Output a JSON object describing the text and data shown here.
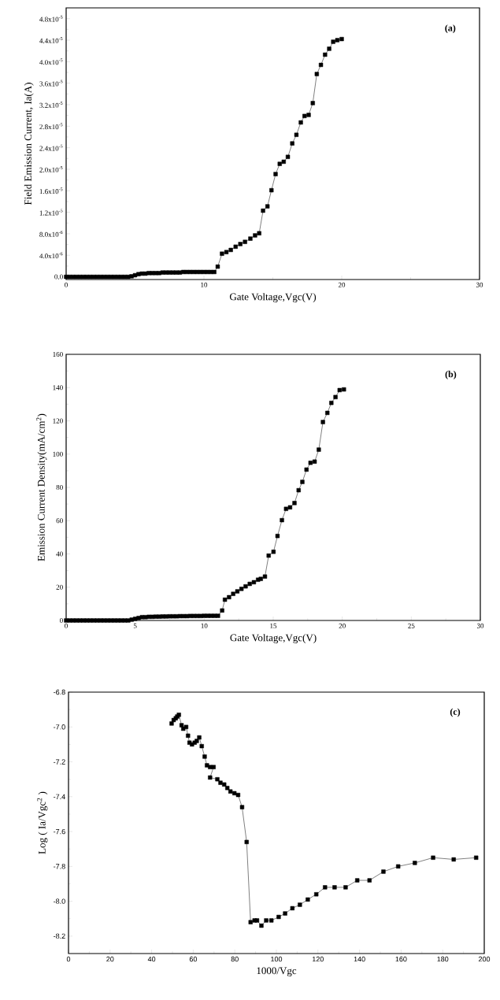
{
  "chart_data": [
    {
      "type": "line",
      "xlabel": "Gate Voltage,Vgc(V)",
      "ylabel": "Field Emission Current, Ia(A)",
      "annotations": [
        "(a)"
      ],
      "marker": "square",
      "line_style": "solid",
      "color": "#000000",
      "x": [
        0,
        0.25,
        0.5,
        0.75,
        1,
        1.25,
        1.5,
        1.75,
        2,
        2.25,
        2.5,
        2.75,
        3,
        3.25,
        3.5,
        3.75,
        4,
        4.25,
        4.5,
        4.75,
        5,
        5.25,
        5.5,
        5.75,
        6,
        6.25,
        6.5,
        6.75,
        7,
        7.25,
        7.5,
        7.75,
        8,
        8.25,
        8.5,
        8.75,
        9,
        9.25,
        9.5,
        9.75,
        10,
        10.25,
        10.5,
        10.75,
        11.0,
        11.31,
        11.63,
        11.95,
        12.3,
        12.64,
        12.98,
        13.37,
        13.71,
        14.01,
        14.29,
        14.61,
        14.9,
        15.2,
        15.5,
        15.79,
        16.09,
        16.41,
        16.71,
        17.03,
        17.3,
        17.6,
        17.9,
        18.19,
        18.49,
        18.79,
        19.09,
        19.38,
        19.68,
        20.0
      ],
      "values": [
        0,
        0,
        0,
        0,
        0,
        0,
        0,
        0,
        0,
        0,
        0,
        0,
        0,
        0,
        0,
        0,
        0,
        0,
        0,
        1e-07,
        3e-07,
        5e-07,
        6e-07,
        6e-07,
        7e-07,
        7e-07,
        7e-07,
        7e-07,
        8e-07,
        8e-07,
        8e-07,
        8e-07,
        8e-07,
        8e-07,
        9e-07,
        9e-07,
        9e-07,
        9e-07,
        9e-07,
        9e-07,
        9e-07,
        9e-07,
        9e-07,
        9e-07,
        1.9e-06,
        4.3e-06,
        4.6e-06,
        5e-06,
        5.6e-06,
        6.1e-06,
        6.5e-06,
        7.1e-06,
        7.7e-06,
        8.1e-06,
        1.23e-05,
        1.31e-05,
        1.61e-05,
        1.91e-05,
        2.1e-05,
        2.14e-05,
        2.23e-05,
        2.48e-05,
        2.64e-05,
        2.87e-05,
        2.99e-05,
        3.01e-05,
        3.23e-05,
        3.77e-05,
        3.94e-05,
        4.13e-05,
        4.24e-05,
        4.37e-05,
        4.4e-05,
        4.42e-05
      ],
      "xlim": [
        0,
        30
      ],
      "xticks": [
        0,
        10,
        20,
        30
      ],
      "ylim": [
        -5e-07,
        5e-05
      ],
      "yticks": [
        {
          "value": 0,
          "label": "0.0"
        },
        {
          "value": 4e-06,
          "label": "4.0x10$^{-6}$"
        },
        {
          "value": 8e-06,
          "label": "8.0x10$^{-6}$"
        },
        {
          "value": 1.2e-05,
          "label": "1.2x10$^{-5}$"
        },
        {
          "value": 1.6e-05,
          "label": "1.6x10$^{-5}$"
        },
        {
          "value": 2e-05,
          "label": "2.0x10$^{-5}$"
        },
        {
          "value": 2.4e-05,
          "label": "2.4x10$^{-5}$"
        },
        {
          "value": 2.8e-05,
          "label": "2.8x10$^{-5}$"
        },
        {
          "value": 3.2e-05,
          "label": "3.2x10$^{-5}$"
        },
        {
          "value": 3.6e-05,
          "label": "3.6x10$^{-5}$"
        },
        {
          "value": 4e-05,
          "label": "4.0x10$^{-5}$"
        },
        {
          "value": 4.4e-05,
          "label": "4.4x10$^{-5}$"
        },
        {
          "value": 4.8e-05,
          "label": "4.8x10$^{-5}$"
        }
      ]
    },
    {
      "type": "line",
      "xlabel": "Gate Voltage,Vgc(V)",
      "ylabel": "Emission Current Density(mA/cm$^{2}$)",
      "annotations": [
        "(b)"
      ],
      "marker": "square",
      "line_style": "solid",
      "color": "#000000",
      "x": [
        0,
        0.25,
        0.5,
        0.75,
        1,
        1.25,
        1.5,
        1.75,
        2,
        2.25,
        2.5,
        2.75,
        3,
        3.25,
        3.5,
        3.75,
        4,
        4.25,
        4.5,
        4.75,
        5,
        5.25,
        5.5,
        5.75,
        6,
        6.25,
        6.5,
        6.75,
        7,
        7.25,
        7.5,
        7.75,
        8,
        8.25,
        8.5,
        8.75,
        9,
        9.25,
        9.5,
        9.75,
        10,
        10.25,
        10.5,
        10.75,
        11.0,
        11.3,
        11.5,
        11.8,
        12.1,
        12.4,
        12.7,
        13.0,
        13.3,
        13.6,
        13.9,
        14.1,
        14.4,
        14.67,
        15.02,
        15.31,
        15.63,
        15.93,
        16.22,
        16.54,
        16.84,
        17.11,
        17.41,
        17.7,
        18.0,
        18.3,
        18.6,
        18.92,
        19.21,
        19.51,
        19.81,
        20.12
      ],
      "values": [
        0,
        0,
        0,
        0,
        0,
        0,
        0,
        0,
        0,
        0,
        0,
        0,
        0,
        0,
        0,
        0,
        0,
        0,
        0,
        0.5,
        1.0,
        1.5,
        2.0,
        2.0,
        2.2,
        2.2,
        2.3,
        2.3,
        2.4,
        2.4,
        2.5,
        2.5,
        2.5,
        2.6,
        2.6,
        2.6,
        2.7,
        2.7,
        2.7,
        2.7,
        2.8,
        2.8,
        2.8,
        2.8,
        2.8,
        6,
        12.5,
        14,
        16,
        17.5,
        19,
        20.5,
        22,
        23,
        24.5,
        25,
        26.4,
        39.0,
        41.3,
        50.8,
        60.3,
        67.1,
        68.0,
        70.6,
        78.3,
        83.3,
        90.7,
        94.8,
        95.5,
        102.7,
        119.3,
        124.8,
        130.8,
        134.3,
        138.5,
        138.9
      ],
      "xlim": [
        0,
        30
      ],
      "xticks": [
        0,
        5,
        10,
        15,
        20,
        25,
        30
      ],
      "ylim": [
        0,
        160
      ],
      "yticks": [
        0,
        20,
        40,
        60,
        80,
        100,
        120,
        140,
        160
      ]
    },
    {
      "type": "line",
      "xlabel": "1000/Vgc",
      "ylabel": "Log ( Ia/Vgc$^{2}$ )",
      "annotations": [
        "(c)"
      ],
      "marker": "square",
      "line_style": "solid",
      "color": "#000000",
      "x": [
        49.6,
        50.6,
        51.6,
        52.3,
        53.1,
        54.4,
        55.2,
        56.6,
        57.5,
        58.2,
        59.4,
        60.7,
        61.7,
        62.9,
        64.1,
        65.5,
        66.6,
        68.1,
        69.8,
        68.1,
        71.6,
        73.1,
        74.9,
        76.4,
        77.9,
        79.8,
        81.6,
        83.5,
        85.7,
        87.6,
        89.5,
        90.7,
        92.8,
        95.1,
        97.6,
        101.1,
        104.2,
        107.7,
        111.3,
        115.1,
        119.2,
        123.4,
        128.0,
        133.3,
        138.9,
        144.8,
        151.5,
        158.6,
        166.6,
        175.4,
        185.3,
        196.1
      ],
      "values": [
        -6.98,
        -6.96,
        -6.95,
        -6.94,
        -6.93,
        -6.99,
        -7.01,
        -7.0,
        -7.05,
        -7.09,
        -7.1,
        -7.09,
        -7.08,
        -7.06,
        -7.11,
        -7.17,
        -7.22,
        -7.23,
        -7.23,
        -7.29,
        -7.3,
        -7.32,
        -7.33,
        -7.35,
        -7.37,
        -7.38,
        -7.39,
        -7.46,
        -7.66,
        -8.12,
        -8.11,
        -8.11,
        -8.14,
        -8.11,
        -8.11,
        -8.09,
        -8.07,
        -8.04,
        -8.02,
        -7.99,
        -7.96,
        -7.92,
        -7.92,
        -7.92,
        -7.88,
        -7.88,
        -7.83,
        -7.8,
        -7.78,
        -7.75,
        -7.76,
        -7.75
      ],
      "xlim": [
        0,
        200
      ],
      "xticks": [
        0,
        20,
        40,
        60,
        80,
        100,
        120,
        140,
        160,
        180,
        200
      ],
      "ylim": [
        -8.3,
        -6.8
      ],
      "yticks": [
        {
          "value": -8.2,
          "label": "-8.2"
        },
        {
          "value": -8.0,
          "label": "-8.0"
        },
        {
          "value": -7.8,
          "label": "-7.8"
        },
        {
          "value": -7.6,
          "label": "-7.6"
        },
        {
          "value": -7.4,
          "label": "-7.4"
        },
        {
          "value": -7.2,
          "label": "-7.2"
        },
        {
          "value": -7.0,
          "label": "-7.0"
        },
        {
          "value": -6.8,
          "label": "-6.8"
        }
      ]
    }
  ]
}
